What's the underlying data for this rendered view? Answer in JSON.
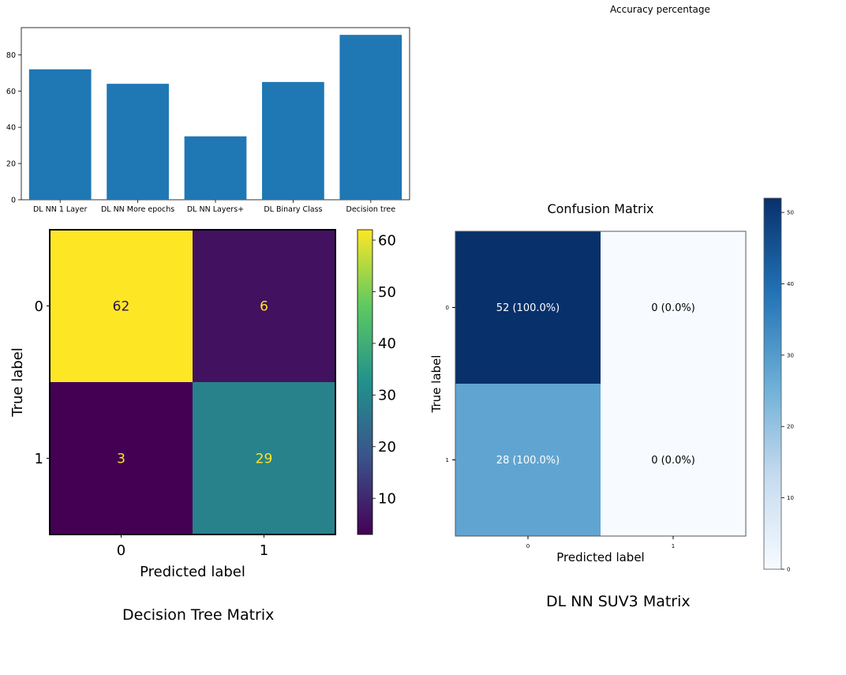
{
  "page": {
    "accuracy_label": "Accuracy percentage",
    "dt_caption": "Decision Tree Matrix",
    "nn_caption": "DL NN SUV3 Matrix"
  },
  "chart_data": [
    {
      "type": "bar",
      "title": "",
      "categories": [
        "DL NN 1 Layer",
        "DL NN More epochs",
        "DL NN Layers+",
        "DL Binary Class",
        "Decision tree"
      ],
      "values": [
        72,
        64,
        35,
        65,
        91
      ],
      "ylim": [
        0,
        95
      ],
      "yticks": [
        0,
        20,
        40,
        60,
        80
      ],
      "xlabel": "",
      "ylabel": "",
      "color": "#1f77b4",
      "grid": false
    },
    {
      "type": "heatmap",
      "title": "",
      "rows": [
        "0",
        "1"
      ],
      "cols": [
        "0",
        "1"
      ],
      "values": [
        [
          62,
          6
        ],
        [
          3,
          29
        ]
      ],
      "cell_labels": [
        [
          "62",
          "6"
        ],
        [
          "3",
          "29"
        ]
      ],
      "xlabel": "Predicted label",
      "ylabel": "True label",
      "colormap": "viridis",
      "colorbar_range": [
        3,
        62
      ],
      "colorbar_ticks": [
        10,
        20,
        30,
        40,
        50,
        60
      ]
    },
    {
      "type": "heatmap",
      "title": "Confusion Matrix",
      "rows": [
        "0",
        "1"
      ],
      "cols": [
        "0",
        "1"
      ],
      "values": [
        [
          52,
          0
        ],
        [
          28,
          0
        ]
      ],
      "cell_labels": [
        [
          "52 (100.0%)",
          "0 (0.0%)"
        ],
        [
          "28 (100.0%)",
          "0 (0.0%)"
        ]
      ],
      "xlabel": "Predicted label",
      "ylabel": "True label",
      "colormap": "blues",
      "colorbar_range": [
        0,
        52
      ],
      "colorbar_ticks": [
        0,
        10,
        20,
        30,
        40,
        50
      ]
    }
  ]
}
